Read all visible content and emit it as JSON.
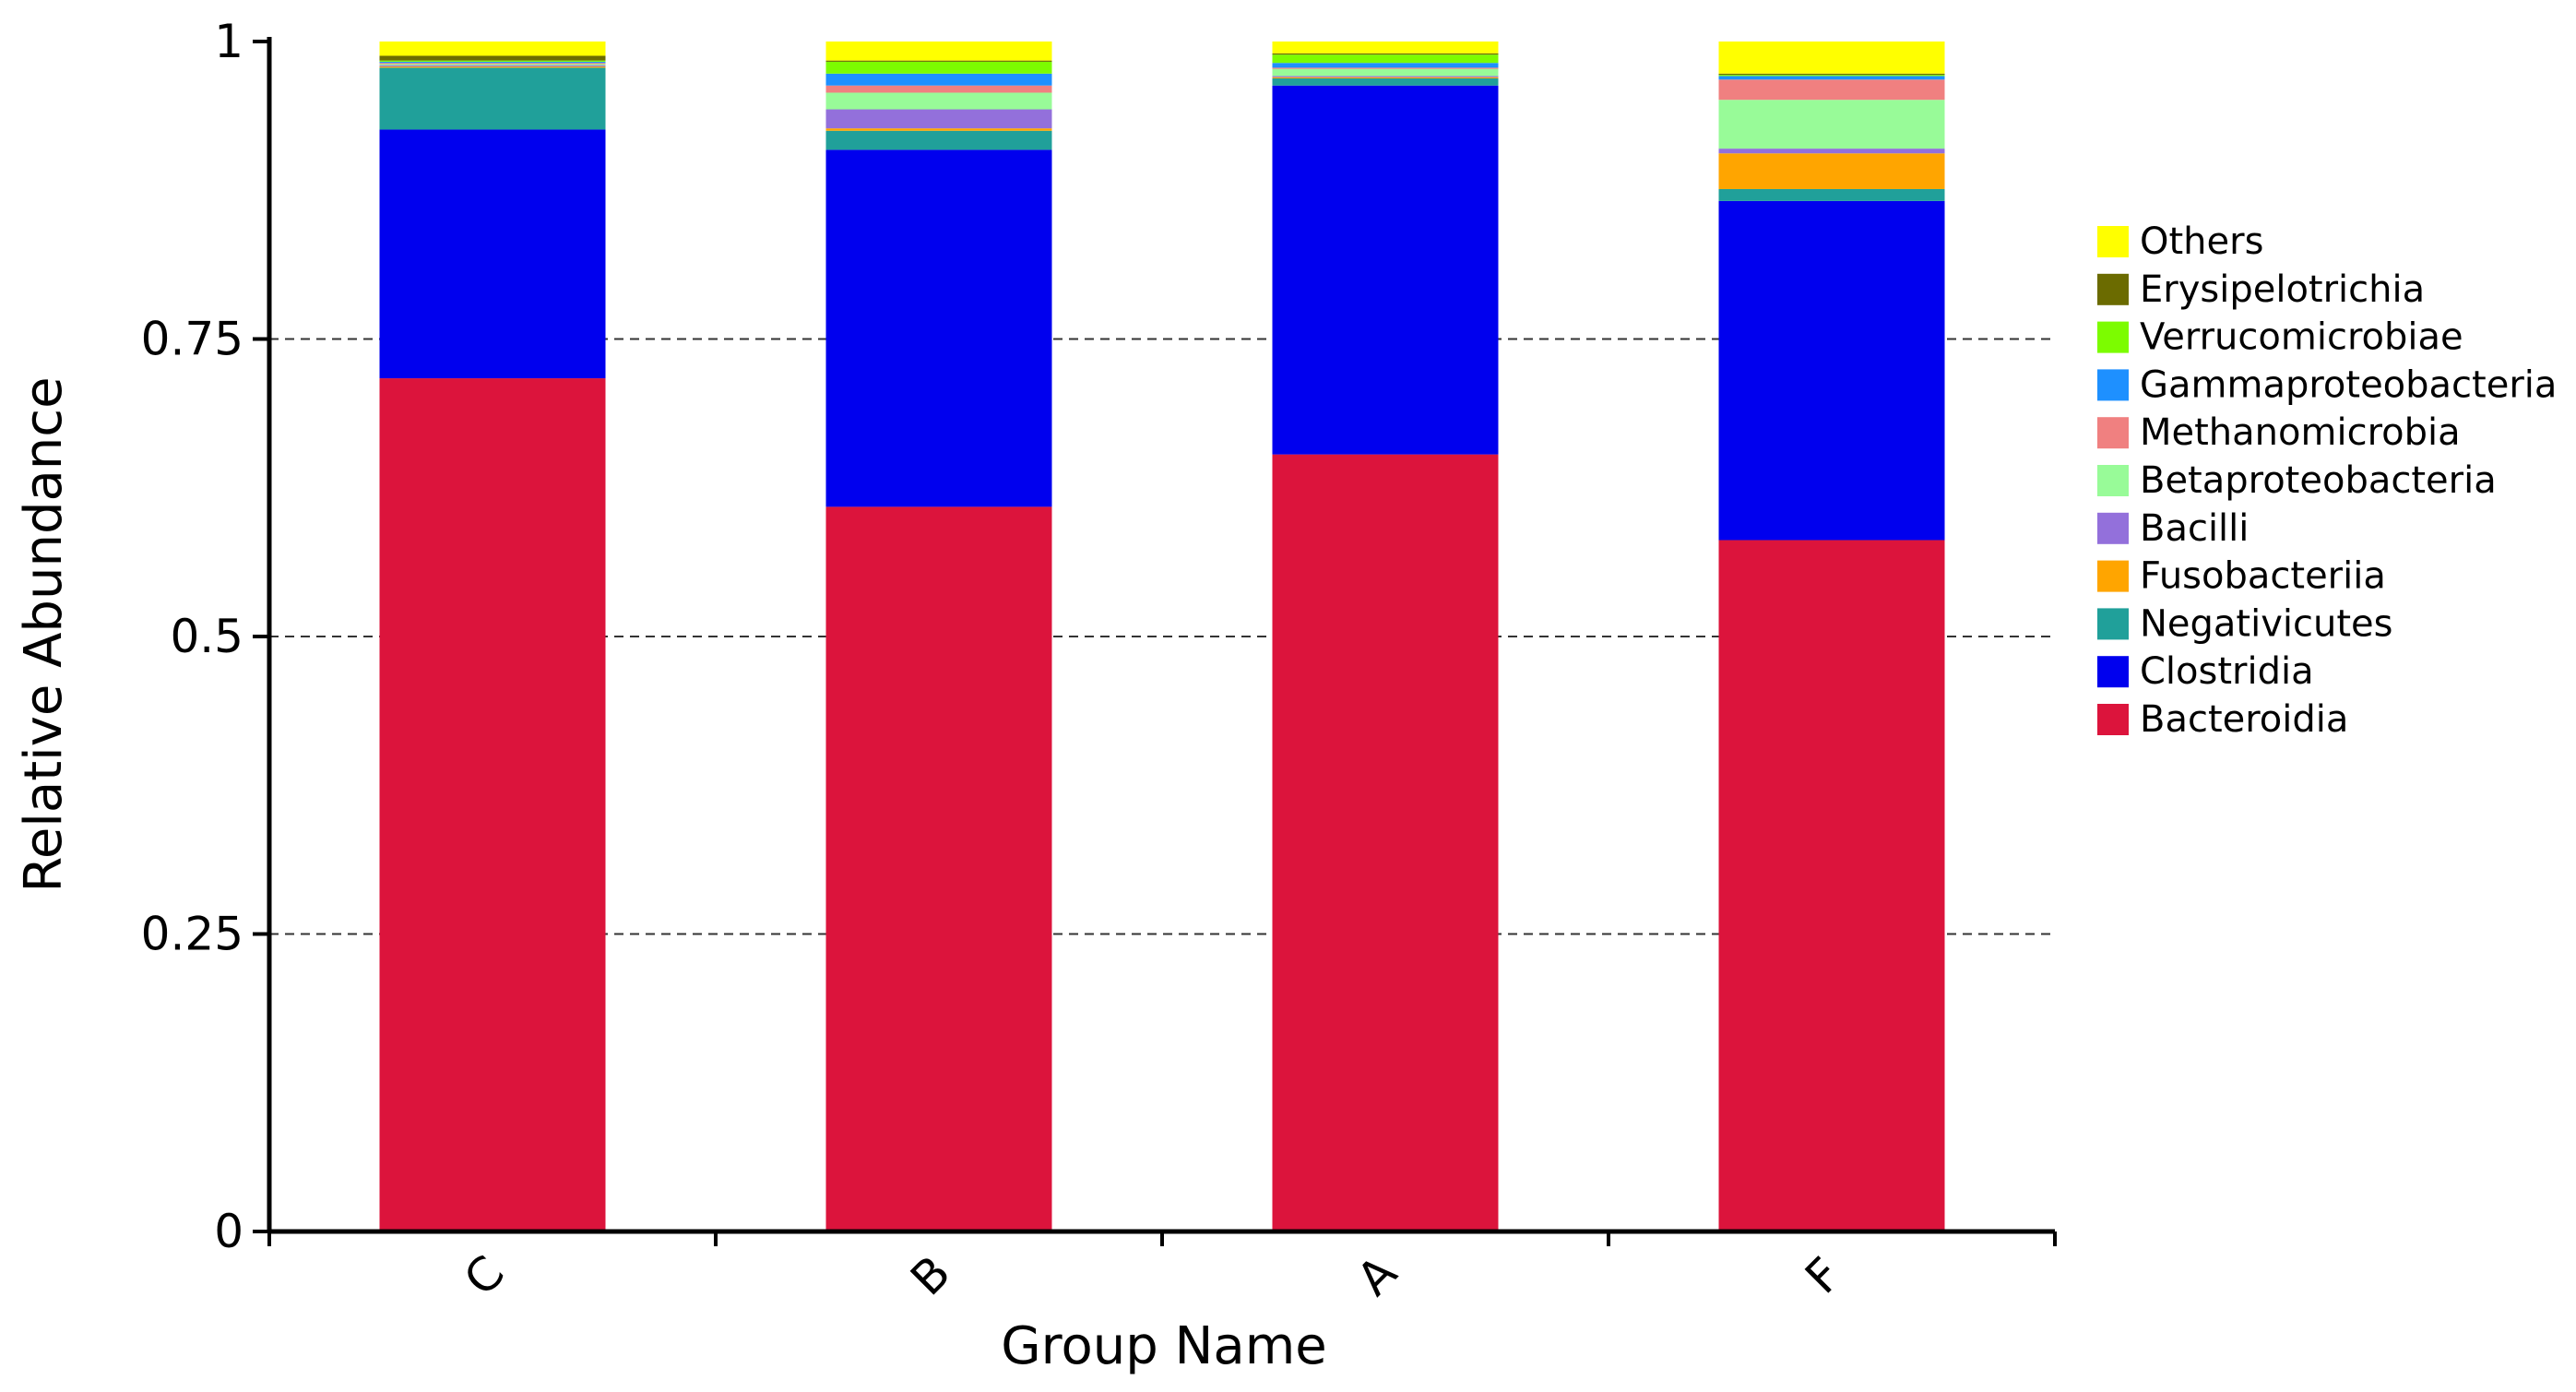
{
  "chart_data": {
    "type": "bar",
    "stacked": true,
    "title": "",
    "xlabel": "Group Name",
    "ylabel": "Relative Abundance",
    "ylim": [
      0,
      1
    ],
    "yticks": [
      0,
      0.25,
      0.5,
      0.75,
      1
    ],
    "ytick_labels": [
      "0",
      "0.25",
      "0.5",
      "0.75",
      "1"
    ],
    "grid": "horizontal dashed at 0.25, 0.5, 0.75",
    "legend_position": "right",
    "categories": [
      "C",
      "B",
      "A",
      "F"
    ],
    "series": [
      {
        "name": "Bacteroidia",
        "color": "#DC143C",
        "values": [
          0.717,
          0.609,
          0.653,
          0.581
        ]
      },
      {
        "name": "Clostridia",
        "color": "#0000EE",
        "values": [
          0.209,
          0.3,
          0.31,
          0.285
        ]
      },
      {
        "name": "Negativicutes",
        "color": "#20A09A",
        "values": [
          0.052,
          0.016,
          0.006,
          0.01
        ]
      },
      {
        "name": "Fusobacteriia",
        "color": "#FFA500",
        "values": [
          0.001,
          0.002,
          0.001,
          0.03
        ]
      },
      {
        "name": "Bacilli",
        "color": "#9370DB",
        "values": [
          0.001,
          0.016,
          0.001,
          0.004
        ]
      },
      {
        "name": "Betaproteobacteria",
        "color": "#98FB98",
        "values": [
          0.001,
          0.014,
          0.006,
          0.041
        ]
      },
      {
        "name": "Methanomicrobia",
        "color": "#F08080",
        "values": [
          0.001,
          0.006,
          0.001,
          0.017
        ]
      },
      {
        "name": "Gammaproteobacteria",
        "color": "#1E90FF",
        "values": [
          0.001,
          0.01,
          0.004,
          0.003
        ]
      },
      {
        "name": "Verrucomicrobiae",
        "color": "#7CFC00",
        "values": [
          0.001,
          0.01,
          0.007,
          0.001
        ]
      },
      {
        "name": "Erysipelotrichia",
        "color": "#6B6B00",
        "values": [
          0.004,
          0.001,
          0.001,
          0.001
        ]
      },
      {
        "name": "Others",
        "color": "#FFFF00",
        "values": [
          0.012,
          0.016,
          0.01,
          0.027
        ]
      }
    ],
    "legend_order": [
      "Others",
      "Erysipelotrichia",
      "Verrucomicrobiae",
      "Gammaproteobacteria",
      "Methanomicrobia",
      "Betaproteobacteria",
      "Bacilli",
      "Fusobacteriia",
      "Negativicutes",
      "Clostridia",
      "Bacteroidia"
    ]
  }
}
